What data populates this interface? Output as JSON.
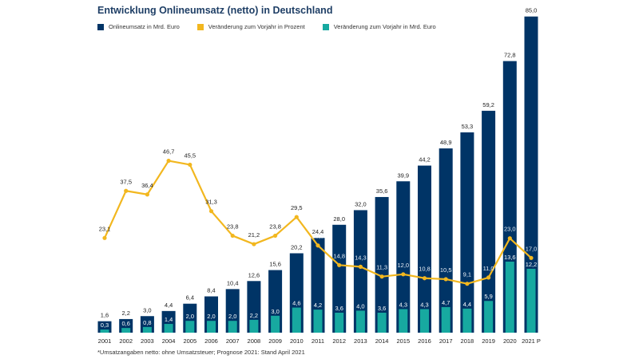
{
  "chart_data": {
    "type": "bar",
    "title": "Entwicklung Onlineumsatz (netto) in Deutschland",
    "categories": [
      "2001",
      "2002",
      "2003",
      "2004",
      "2005",
      "2006",
      "2007",
      "2008",
      "2009",
      "2010",
      "2011",
      "2012",
      "2013",
      "2014",
      "2015",
      "2016",
      "2017",
      "2018",
      "2019",
      "2020",
      "2021 P"
    ],
    "series": [
      {
        "name": "Onlineumsatz in Mrd. Euro",
        "type": "bar",
        "color": "#003466",
        "values": [
          1.6,
          2.2,
          3.0,
          4.4,
          6.4,
          8.4,
          10.4,
          12.6,
          15.6,
          20.2,
          24.4,
          28.0,
          32.0,
          35.6,
          39.9,
          44.2,
          48.9,
          53.3,
          59.2,
          72.8,
          85.0
        ],
        "labels": [
          "1,6",
          "2,2",
          "3,0",
          "4,4",
          "6,4",
          "8,4",
          "10,4",
          "12,6",
          "15,6",
          "20,2",
          "24,4",
          "28,0",
          "32,0",
          "35,6",
          "39,9",
          "44,2",
          "48,9",
          "53,3",
          "59,2",
          "72,8",
          "85,0"
        ]
      },
      {
        "name": "Veränderung zum Vorjahr in Prozent",
        "type": "line",
        "color": "#f2b71f",
        "values": [
          23.1,
          37.5,
          36.4,
          46.7,
          45.5,
          31.3,
          23.8,
          21.2,
          23.8,
          29.5,
          20.8,
          14.8,
          14.3,
          11.3,
          12.0,
          10.8,
          10.5,
          9.1,
          11.0,
          23.0,
          17.0
        ],
        "labels": [
          "23,1",
          "37,5",
          "36,4",
          "46,7",
          "45,5",
          "31,3",
          "23,8",
          "21,2",
          "23,8",
          "29,5",
          "20,8",
          "14,8",
          "14,3",
          "11,3",
          "12,0",
          "10,8",
          "10,5",
          "9,1",
          "11,0",
          "23,0",
          "17,0"
        ]
      },
      {
        "name": "Veränderung zum Vorjahr in Mrd. Euro",
        "type": "bar",
        "color": "#17a9a0",
        "values": [
          0.3,
          0.6,
          0.8,
          1.4,
          2.0,
          2.0,
          2.0,
          2.2,
          3.0,
          4.6,
          4.2,
          3.6,
          4.0,
          3.6,
          4.3,
          4.3,
          4.7,
          4.4,
          5.9,
          13.6,
          12.2
        ],
        "labels": [
          "0,3",
          "0,6",
          "0,8",
          "1,4",
          "2,0",
          "2,0",
          "2,0",
          "2,2",
          "3,0",
          "4,6",
          "4,2",
          "3,6",
          "4,0",
          "3,6",
          "4,3",
          "4,3",
          "4,7",
          "4,4",
          "5,9",
          "13,6",
          "12,2"
        ]
      }
    ],
    "xlabel": "",
    "ylabel": "",
    "grid": false,
    "legend": "top-left",
    "footnote": "*Umsatzangaben netto: ohne Umsatzsteuer; Prognose 2021: Stand April 2021"
  }
}
